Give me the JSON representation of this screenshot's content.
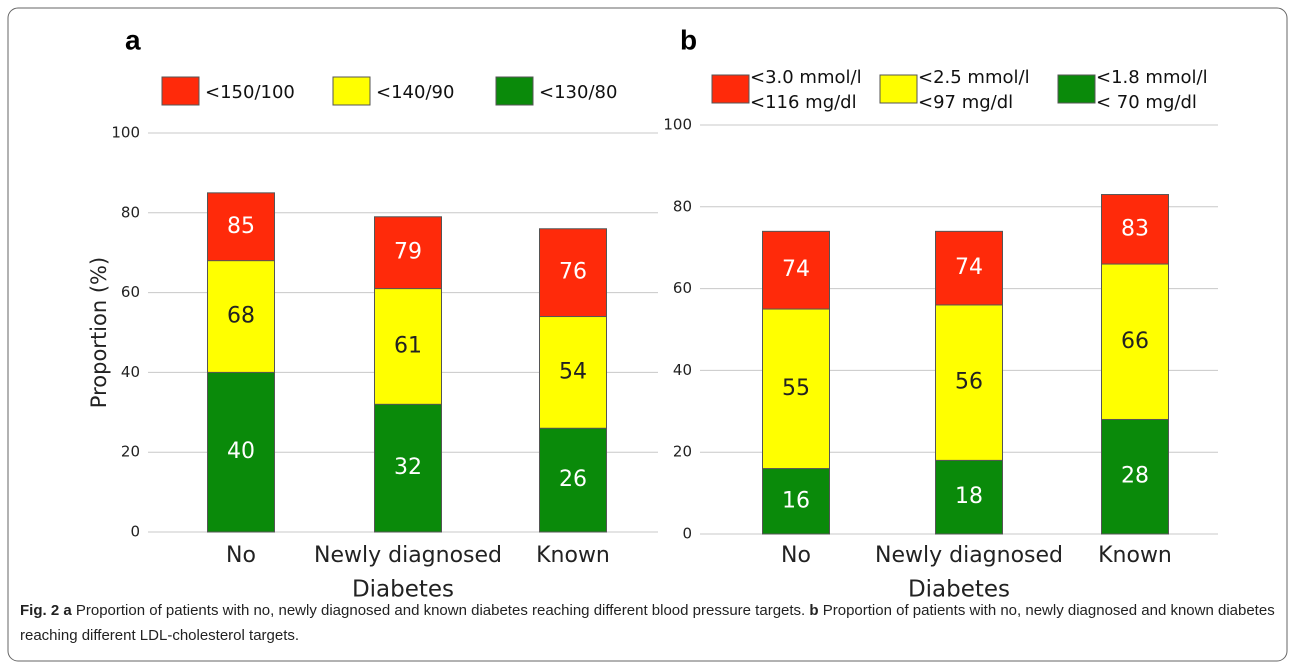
{
  "chart_data": [
    {
      "type": "bar",
      "panel": "a",
      "ylabel": "Proportion (%)",
      "xlabel": "Diabetes",
      "categories": [
        "No",
        "Newly diagnosed",
        "Known"
      ],
      "series": [
        {
          "name": "<150/100",
          "color": "#ff2a0a",
          "values": [
            85,
            79,
            76
          ]
        },
        {
          "name": "<140/90",
          "color": "#ffff00",
          "values": [
            68,
            61,
            54
          ]
        },
        {
          "name": "<130/80",
          "color": "#0a8a0a",
          "values": [
            40,
            32,
            26
          ]
        }
      ],
      "ylim": [
        0,
        100
      ],
      "yticks": [
        0,
        20,
        40,
        60,
        80,
        100
      ],
      "grid": true
    },
    {
      "type": "bar",
      "panel": "b",
      "xlabel": "Diabetes",
      "categories": [
        "No",
        "Newly diagnosed",
        "Known"
      ],
      "series": [
        {
          "name": "<3.0 mmol/l\n<116 mg/dl",
          "color": "#ff2a0a",
          "values": [
            74,
            74,
            83
          ]
        },
        {
          "name": "<2.5 mmol/l\n<97 mg/dl",
          "color": "#ffff00",
          "values": [
            55,
            56,
            66
          ]
        },
        {
          "name": "<1.8 mmol/l\n< 70 mg/dl",
          "color": "#0a8a0a",
          "values": [
            16,
            18,
            28
          ]
        }
      ],
      "ylim": [
        0,
        100
      ],
      "yticks": [
        0,
        20,
        40,
        60,
        80,
        100
      ],
      "grid": true
    }
  ],
  "caption": {
    "label": "Fig. 2",
    "a": "a",
    "text_a": " Proportion of patients with no, newly diagnosed and known diabetes reaching different blood pressure targets. ",
    "b": "b",
    "text_b": " Proportion of patients with no, newly diagnosed and known diabetes reaching different LDL-cholesterol targets."
  }
}
